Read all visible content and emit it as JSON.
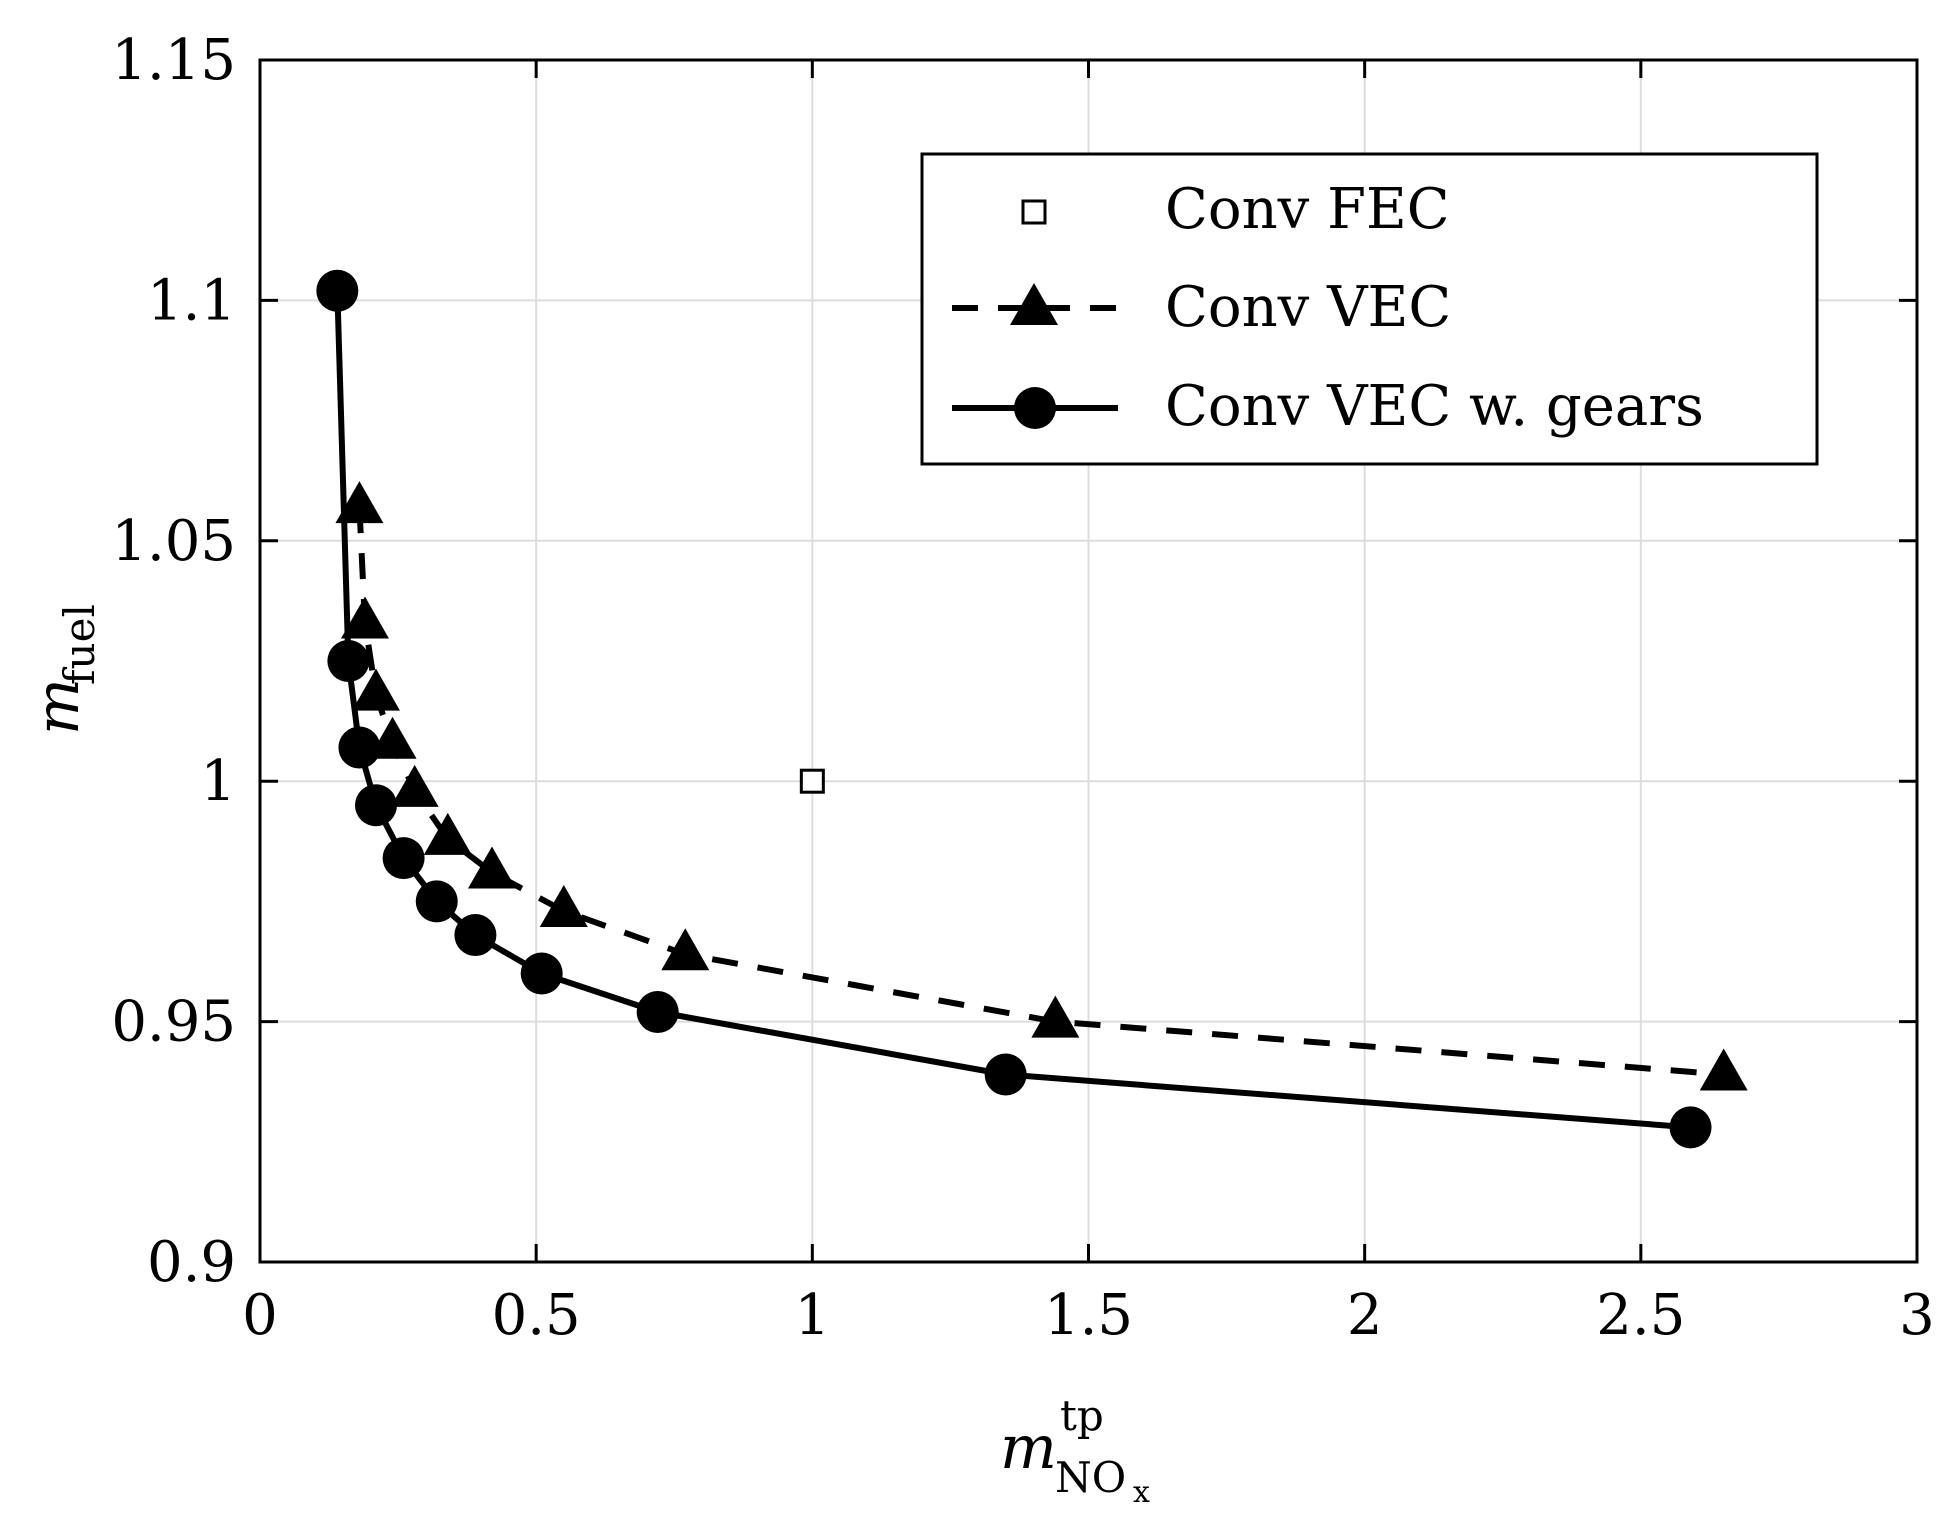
{
  "chart_data": {
    "type": "line",
    "title": "",
    "xlabel": {
      "base": "m",
      "sup": "tp",
      "sub_main": "NO",
      "sub_sub": "x"
    },
    "ylabel": {
      "base": "m",
      "sub": "fuel"
    },
    "xlim": [
      0,
      3
    ],
    "ylim": [
      0.9,
      1.15
    ],
    "xticks": [
      0,
      0.5,
      1,
      1.5,
      2,
      2.5,
      3
    ],
    "xtick_labels": [
      "0",
      "0.5",
      "1",
      "1.5",
      "2",
      "2.5",
      "3"
    ],
    "yticks": [
      0.9,
      0.95,
      1.0,
      1.05,
      1.1,
      1.15
    ],
    "ytick_labels": [
      "0.9",
      "0.95",
      "1",
      "1.05",
      "1.1",
      "1.15"
    ],
    "grid": true,
    "legend_position": "top-right",
    "series": [
      {
        "name": "Conv FEC",
        "style": "square-marker",
        "x": [
          1.0
        ],
        "y": [
          1.0
        ]
      },
      {
        "name": "Conv VEC",
        "style": "dashed-triangle",
        "x": [
          0.18,
          0.19,
          0.21,
          0.24,
          0.28,
          0.34,
          0.42,
          0.55,
          0.77,
          1.44,
          2.65
        ],
        "y": [
          1.057,
          1.033,
          1.018,
          1.008,
          0.998,
          0.988,
          0.981,
          0.973,
          0.964,
          0.95,
          0.939
        ]
      },
      {
        "name": "Conv VEC w. gears",
        "style": "solid-circle",
        "x": [
          0.14,
          0.16,
          0.18,
          0.21,
          0.26,
          0.32,
          0.39,
          0.51,
          0.72,
          1.35,
          2.59
        ],
        "y": [
          1.102,
          1.025,
          1.007,
          0.995,
          0.984,
          0.975,
          0.968,
          0.96,
          0.952,
          0.939,
          0.928
        ]
      }
    ]
  }
}
